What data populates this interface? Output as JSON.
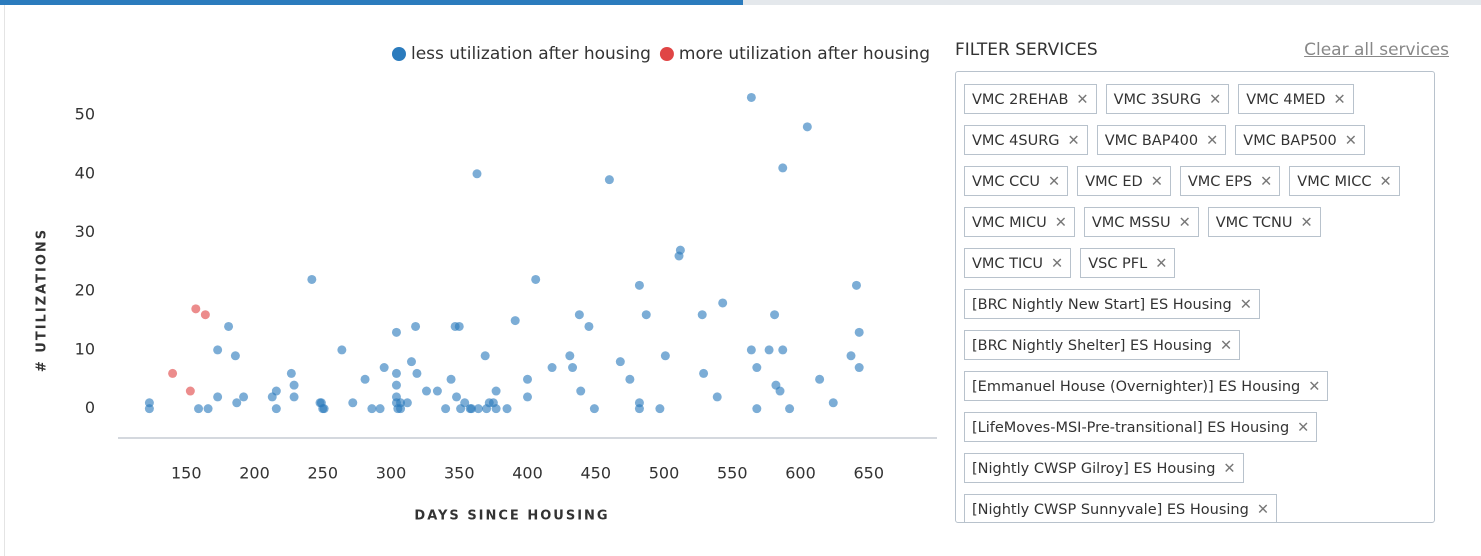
{
  "chart_data": {
    "type": "scatter",
    "x_label": "DAYS SINCE HOUSING",
    "y_label": "# UTILIZATIONS",
    "series": [
      {
        "name": "less utilization after housing",
        "color": "#2b7bbd",
        "x": [
          123,
          123,
          159,
          166,
          173,
          173,
          181,
          186,
          187,
          192,
          213,
          216,
          216,
          227,
          229,
          229,
          242,
          248,
          249,
          250,
          251,
          264,
          272,
          281,
          286,
          292,
          295,
          304,
          304,
          304,
          304,
          304,
          305,
          307,
          307,
          312,
          315,
          318,
          319,
          326,
          334,
          340,
          344,
          347,
          350,
          348,
          351,
          354,
          358,
          359,
          363,
          369,
          364,
          370,
          372,
          375,
          377,
          377,
          385,
          391,
          400,
          400,
          406,
          418,
          431,
          433,
          438,
          439,
          445,
          449,
          460,
          468,
          475,
          482,
          482,
          482,
          487,
          497,
          501,
          511,
          512,
          528,
          529,
          539,
          543,
          564,
          564,
          568,
          568,
          577,
          581,
          582,
          585,
          587,
          587,
          592,
          605,
          614,
          624,
          637,
          641,
          643,
          643
        ],
        "values": [
          1,
          0,
          0,
          0,
          10,
          2,
          14,
          9,
          1,
          2,
          2,
          0,
          3,
          6,
          4,
          2,
          22,
          1,
          1,
          0,
          0,
          10,
          1,
          5,
          0,
          0,
          7,
          13,
          6,
          4,
          2,
          1,
          0,
          0,
          1,
          1,
          8,
          14,
          6,
          3,
          3,
          0,
          5,
          14,
          14,
          2,
          0,
          1,
          0,
          0,
          40,
          9,
          0,
          0,
          1,
          1,
          0,
          3,
          0,
          15,
          2,
          5,
          22,
          7,
          9,
          7,
          16,
          3,
          14,
          0,
          39,
          8,
          5,
          21,
          1,
          0,
          16,
          0,
          9,
          26,
          27,
          16,
          6,
          2,
          18,
          53,
          10,
          0,
          7,
          10,
          16,
          4,
          3,
          10,
          41,
          0,
          48,
          5,
          1,
          9,
          21,
          13,
          7
        ]
      },
      {
        "name": "more utilization after housing",
        "color": "#e04545",
        "x": [
          140,
          153,
          157,
          164
        ],
        "values": [
          6,
          3,
          17,
          16
        ]
      }
    ],
    "xlim": [
      100,
      700
    ],
    "xticks": [
      150,
      200,
      250,
      300,
      350,
      400,
      450,
      500,
      550,
      600,
      650
    ],
    "ylim": [
      -5,
      57
    ],
    "yticks": [
      0,
      10,
      20,
      30,
      40,
      50
    ]
  },
  "filter": {
    "title": "FILTER SERVICES",
    "clear_link": "Clear all services",
    "tags": [
      "VMC 2REHAB",
      "VMC 3SURG",
      "VMC 4MED",
      "VMC 4SURG",
      "VMC BAP400",
      "VMC BAP500",
      "VMC CCU",
      "VMC ED",
      "VMC EPS",
      "VMC MICC",
      "VMC MICU",
      "VMC MSSU",
      "VMC TCNU",
      "VMC TICU",
      "VSC PFL",
      "[BRC Nightly New Start] ES Housing",
      "[BRC Nightly Shelter] ES Housing",
      "[Emmanuel House (Overnighter)] ES Housing",
      "[LifeMoves-MSI-Pre-transitional] ES Housing",
      "[Nightly CWSP Gilroy] ES Housing",
      "[Nightly CWSP Sunnyvale] ES Housing"
    ]
  }
}
